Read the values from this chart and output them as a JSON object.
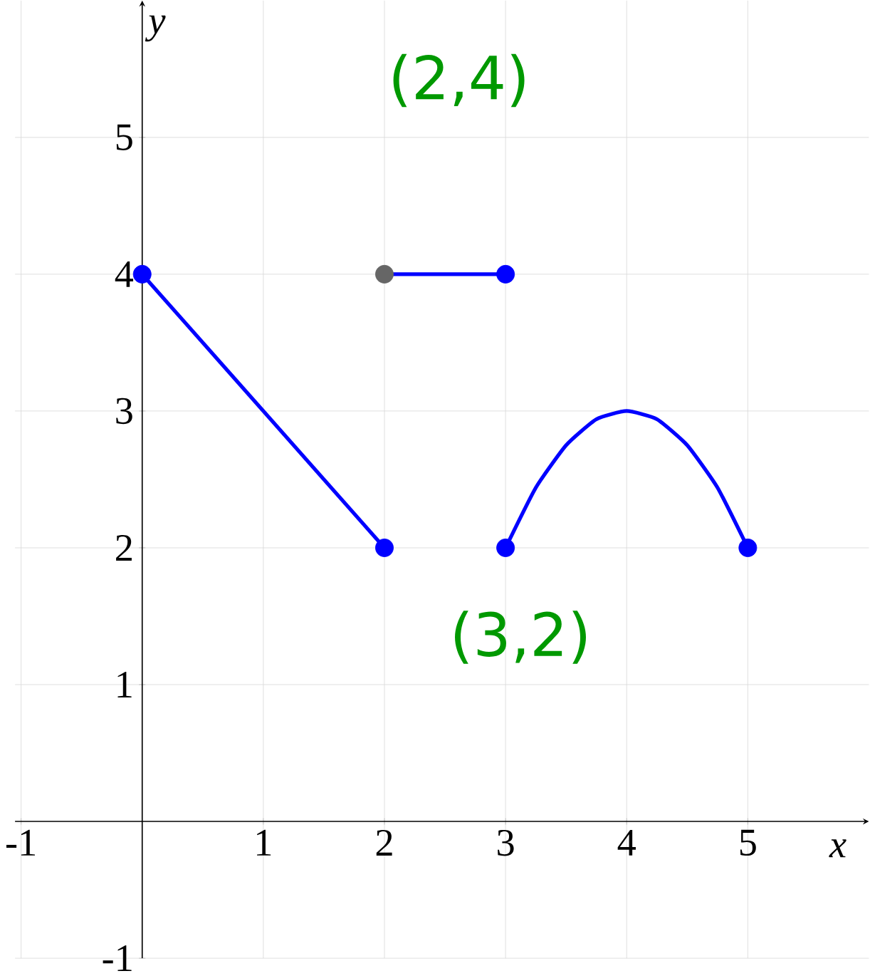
{
  "chart_data": {
    "type": "line",
    "xlabel": "x",
    "ylabel": "y",
    "xlim": [
      -1.05,
      6
    ],
    "ylim": [
      -1,
      6
    ],
    "xticks": [
      -1,
      1,
      2,
      3,
      4,
      5
    ],
    "yticks": [
      -1,
      1,
      2,
      3,
      4,
      5
    ],
    "grid": true,
    "marker": "none",
    "line_style": "solid",
    "series": [
      {
        "color": "#0000ff",
        "x": [
          0,
          2
        ],
        "values": [
          4,
          2
        ]
      },
      {
        "color": "#0000ff",
        "x": [
          2,
          3
        ],
        "values": [
          4,
          4
        ]
      },
      {
        "color": "#0000ff",
        "x": [
          3,
          3.25,
          3.5,
          3.75,
          4,
          4.25,
          4.5,
          4.75,
          5
        ],
        "values": [
          2,
          2.44,
          2.75,
          2.94,
          3,
          2.94,
          2.75,
          2.44,
          2
        ]
      },
      {
        "type": "scatter",
        "marker": "circle",
        "color": "#0000ff",
        "x": [
          0,
          2,
          3,
          3,
          5
        ],
        "values": [
          4,
          2,
          4,
          2,
          2
        ]
      },
      {
        "type": "scatter",
        "marker": "circle",
        "color": "#666666",
        "x": [
          2
        ],
        "values": [
          4
        ]
      }
    ],
    "annotations": [
      {
        "text": "(2,4)",
        "x": 2,
        "y": 4
      },
      {
        "text": "(3,2)",
        "x": 3,
        "y": 2
      }
    ]
  }
}
